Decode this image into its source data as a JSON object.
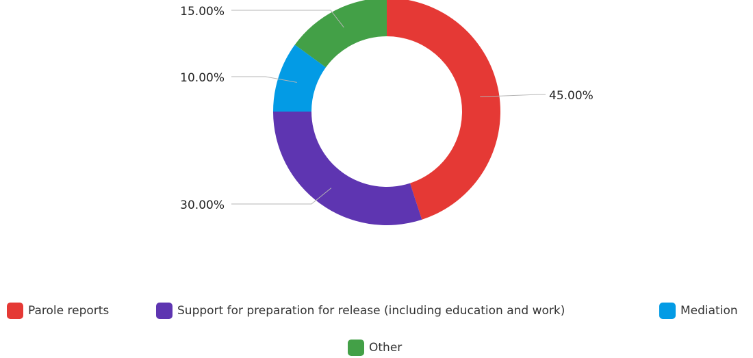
{
  "chart_data": {
    "type": "pie",
    "variant": "donut",
    "categories": [
      "Parole reports",
      "Support for preparation for release (including education and work)",
      "Mediation",
      "Other"
    ],
    "values": [
      45,
      30,
      10,
      15
    ],
    "data_labels": [
      "45.00%",
      "30.00%",
      "10.00%",
      "15.00%"
    ],
    "colors": [
      "#e53935",
      "#5e35b1",
      "#039be5",
      "#43a047"
    ],
    "legend_position": "bottom",
    "title": "",
    "xlabel": "",
    "ylabel": ""
  }
}
